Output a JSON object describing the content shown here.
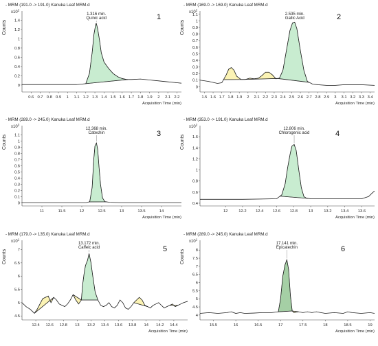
{
  "chart_data": [
    {
      "type": "line",
      "panel_number": "1",
      "title": "- MRM (191.0 -> 191.0) Kanuka Leaf MRM.d",
      "ylabel": "Counts",
      "yscale_label": "x10",
      "yscale_exp": "2",
      "xlabel": "Acquisition Time (min)",
      "xlim": [
        0.5,
        2.25
      ],
      "ylim": [
        -0.15,
        1.6
      ],
      "xticks": [
        0.6,
        0.7,
        0.8,
        0.9,
        1,
        1.1,
        1.2,
        1.3,
        1.4,
        1.5,
        1.6,
        1.7,
        1.8,
        1.9,
        2,
        2.1,
        2.2
      ],
      "yticks": [
        0,
        0.2,
        0.4,
        0.6,
        0.8,
        1,
        1.2,
        1.4
      ],
      "peak_labels": [
        {
          "time": "1.316 min.",
          "name": "Quinic acid"
        }
      ],
      "x": [
        0.5,
        0.8,
        1.1,
        1.2,
        1.24,
        1.27,
        1.29,
        1.31,
        1.316,
        1.33,
        1.35,
        1.37,
        1.4,
        1.45,
        1.5,
        1.55,
        1.6,
        1.65,
        1.7,
        1.8,
        1.9,
        2.0,
        2.1,
        2.2,
        2.25
      ],
      "y": [
        0.01,
        0.01,
        0.01,
        0.03,
        0.25,
        0.7,
        1.1,
        1.32,
        1.33,
        1.22,
        0.98,
        0.7,
        0.5,
        0.36,
        0.25,
        0.18,
        0.14,
        0.12,
        0.12,
        0.13,
        0.11,
        0.09,
        0.07,
        0.05,
        0.04
      ],
      "peaks": [
        {
          "from": 1.2,
          "to": 1.66,
          "color": "#c8ecd0"
        }
      ]
    },
    {
      "type": "line",
      "panel_number": "2",
      "title": "- MRM (169.0 -> 169.0) Kanuka Leaf MRM.d",
      "ylabel": "Counts",
      "yscale_label": "x10",
      "yscale_exp": "2",
      "xlabel": "Acquisition Time (min)",
      "xlim": [
        1.45,
        3.45
      ],
      "ylim": [
        -0.08,
        1.15
      ],
      "xticks": [
        1.5,
        1.6,
        1.7,
        1.8,
        1.9,
        2,
        2.1,
        2.2,
        2.3,
        2.4,
        2.5,
        2.6,
        2.7,
        2.8,
        2.9,
        3,
        3.1,
        3.2,
        3.3,
        3.4
      ],
      "yticks": [
        0,
        0.1,
        0.2,
        0.3,
        0.4,
        0.5,
        0.6,
        0.7,
        0.8,
        0.9,
        1,
        1.1
      ],
      "peak_labels": [
        {
          "time": "2.535 min.",
          "name": "Gallic Acid"
        }
      ],
      "x": [
        1.45,
        1.55,
        1.65,
        1.7,
        1.75,
        1.78,
        1.81,
        1.84,
        1.87,
        1.92,
        1.97,
        2.02,
        2.07,
        2.12,
        2.16,
        2.2,
        2.24,
        2.28,
        2.32,
        2.36,
        2.4,
        2.44,
        2.48,
        2.51,
        2.535,
        2.56,
        2.6,
        2.64,
        2.68,
        2.74,
        2.8,
        2.9,
        3.0,
        3.1,
        3.2,
        3.3,
        3.45
      ],
      "y": [
        0.1,
        0.08,
        0.05,
        0.06,
        0.18,
        0.27,
        0.29,
        0.25,
        0.16,
        0.11,
        0.11,
        0.13,
        0.12,
        0.13,
        0.17,
        0.22,
        0.22,
        0.18,
        0.12,
        0.13,
        0.25,
        0.55,
        0.85,
        0.97,
        0.98,
        0.88,
        0.55,
        0.25,
        0.08,
        0.04,
        0.03,
        0.02,
        0.02,
        0.03,
        0.03,
        0.03,
        0.02
      ],
      "peaks": [
        {
          "from": 1.72,
          "to": 1.95,
          "color": "#fbf3b4"
        },
        {
          "from": 1.95,
          "to": 2.34,
          "color": "#fbf3b4"
        },
        {
          "from": 2.34,
          "to": 2.7,
          "color": "#c8ecd0"
        }
      ]
    },
    {
      "type": "line",
      "panel_number": "3",
      "title": "- MRM (289.0 -> 245.0) Kanuka Leaf MRM.d",
      "ylabel": "Counts",
      "yscale_label": "x10",
      "yscale_exp": "3",
      "xlabel": "Acquisition Time (min)",
      "xlim": [
        10.5,
        14.5
      ],
      "ylim": [
        -0.05,
        1.25
      ],
      "xticks": [
        11,
        11.5,
        12,
        12.5,
        13,
        13.5,
        14
      ],
      "yticks": [
        0,
        0.1,
        0.2,
        0.3,
        0.4,
        0.5,
        0.6,
        0.7,
        0.8,
        0.9,
        1,
        1.1
      ],
      "peak_labels": [
        {
          "time": "12.368 min.",
          "name": "Catechin"
        }
      ],
      "x": [
        10.5,
        11.5,
        12.1,
        12.2,
        12.26,
        12.3,
        12.33,
        12.368,
        12.4,
        12.43,
        12.47,
        12.52,
        12.58,
        12.7,
        13.0,
        14.5
      ],
      "y": [
        0,
        0,
        0,
        0.02,
        0.25,
        0.7,
        0.92,
        0.97,
        0.86,
        0.6,
        0.3,
        0.08,
        0.02,
        0.01,
        0,
        0
      ],
      "peaks": [
        {
          "from": 12.18,
          "to": 12.62,
          "color": "#c8ecd0"
        }
      ]
    },
    {
      "type": "line",
      "panel_number": "4",
      "title": "- MRM (353.0 -> 191.0) Kanuka Leaf MRM.d",
      "ylabel": "Counts",
      "yscale_label": "x10",
      "yscale_exp": "2",
      "xlabel": "Acquisition Time (min)",
      "xlim": [
        11.7,
        13.75
      ],
      "ylim": [
        0.35,
        1.8
      ],
      "xticks": [
        12,
        12.2,
        12.4,
        12.6,
        12.8,
        13,
        13.2,
        13.4,
        13.6
      ],
      "yticks": [
        0.4,
        0.6,
        0.8,
        1,
        1.2,
        1.4,
        1.6
      ],
      "peak_labels": [
        {
          "time": "12.806 min.",
          "name": "Chlorogenic acid"
        }
      ],
      "x": [
        11.7,
        12.2,
        12.6,
        12.66,
        12.7,
        12.73,
        12.76,
        12.78,
        12.806,
        12.83,
        12.86,
        12.89,
        12.92,
        12.95,
        13.0,
        13.1,
        13.3,
        13.6,
        13.68,
        13.72,
        13.75
      ],
      "y": [
        0.47,
        0.47,
        0.48,
        0.55,
        0.75,
        1.05,
        1.3,
        1.43,
        1.46,
        1.35,
        1.0,
        0.68,
        0.52,
        0.49,
        0.48,
        0.48,
        0.48,
        0.48,
        0.52,
        0.58,
        0.62
      ],
      "peaks": [
        {
          "from": 12.64,
          "to": 12.97,
          "color": "#c8ecd0"
        }
      ]
    },
    {
      "type": "line",
      "panel_number": "5",
      "title": "- MRM (179.0 -> 135.0) Kanuka Leaf MRM.d",
      "ylabel": "Counts",
      "yscale_label": "x10",
      "yscale_exp": "1",
      "xlabel": "Acquisition Time (min)",
      "xlim": [
        12.2,
        14.6
      ],
      "ylim": [
        4.35,
        7.35
      ],
      "xticks": [
        12.4,
        12.6,
        12.8,
        13,
        13.2,
        13.4,
        13.6,
        13.8,
        14,
        14.2,
        14.4
      ],
      "yticks": [
        4.5,
        5,
        5.5,
        6,
        6.5,
        7
      ],
      "peak_labels": [
        {
          "time": "13.172 min.",
          "name": "Caffeic acid"
        }
      ],
      "x": [
        12.2,
        12.26,
        12.32,
        12.38,
        12.42,
        12.46,
        12.5,
        12.54,
        12.58,
        12.62,
        12.66,
        12.7,
        12.74,
        12.78,
        12.82,
        12.86,
        12.9,
        12.94,
        12.98,
        13.02,
        13.06,
        13.08,
        13.1,
        13.12,
        13.15,
        13.172,
        13.2,
        13.22,
        13.26,
        13.3,
        13.34,
        13.38,
        13.42,
        13.46,
        13.5,
        13.54,
        13.58,
        13.62,
        13.66,
        13.7,
        13.74,
        13.78,
        13.82,
        13.86,
        13.9,
        13.94,
        13.98,
        14.02,
        14.06,
        14.1,
        14.14,
        14.18,
        14.22,
        14.26,
        14.3,
        14.34,
        14.38,
        14.42,
        14.46,
        14.5,
        14.54,
        14.6
      ],
      "y": [
        5.0,
        4.85,
        4.75,
        4.6,
        4.75,
        4.95,
        5.15,
        5.2,
        5.25,
        5.0,
        5.2,
        5.1,
        4.95,
        4.9,
        4.85,
        4.95,
        5.1,
        5.3,
        5.1,
        4.95,
        5.1,
        5.7,
        6.1,
        6.4,
        6.6,
        6.85,
        6.5,
        6.1,
        5.4,
        5.1,
        4.9,
        4.85,
        4.9,
        5.0,
        4.85,
        4.8,
        4.9,
        5.1,
        5.0,
        4.8,
        4.75,
        4.85,
        5.0,
        5.1,
        5.2,
        5.1,
        4.9,
        4.85,
        4.8,
        4.9,
        4.95,
        5.0,
        4.9,
        4.8,
        4.85,
        4.9,
        4.95,
        4.85,
        4.9,
        4.95,
        5.0,
        5.05
      ],
      "peaks": [
        {
          "from": 12.38,
          "to": 12.66,
          "color": "#fbf3b4"
        },
        {
          "from": 12.94,
          "to": 13.06,
          "color": "#fbf3b4"
        },
        {
          "from": 13.06,
          "to": 13.3,
          "color": "#c8ecd0"
        },
        {
          "from": 13.82,
          "to": 14.02,
          "color": "#fbf3b4"
        },
        {
          "from": 14.34,
          "to": 14.46,
          "color": "#fbf3b4"
        }
      ]
    },
    {
      "type": "line",
      "panel_number": "6",
      "title": "- MRM (289.0 -> 245.0) Kanuka Leaf MRM.d",
      "ylabel": "Counts",
      "yscale_label": "x10",
      "yscale_exp": "1",
      "xlabel": "Acquisition Time (min)",
      "xlim": [
        15.2,
        19.1
      ],
      "ylim": [
        3.7,
        8.6
      ],
      "xticks": [
        15.5,
        16,
        16.5,
        17,
        17.5,
        18,
        18.5,
        19
      ],
      "yticks": [
        4,
        4.5,
        5,
        5.5,
        6,
        6.5,
        7,
        7.5,
        8
      ],
      "peak_labels": [
        {
          "time": "17.141 min.",
          "name": "Epicatechin"
        }
      ],
      "x": [
        15.2,
        15.4,
        15.6,
        15.8,
        15.9,
        16.0,
        16.1,
        16.2,
        16.4,
        16.6,
        16.8,
        16.95,
        17.0,
        17.05,
        17.1,
        17.141,
        17.18,
        17.22,
        17.26,
        17.3,
        17.4,
        17.5,
        17.6,
        17.7,
        17.8,
        17.9,
        18.0,
        18.2,
        18.4,
        18.5,
        18.6,
        18.8,
        19.0,
        19.1
      ],
      "y": [
        4.1,
        4.15,
        4.1,
        4.15,
        4.2,
        4.1,
        4.15,
        4.1,
        4.12,
        4.15,
        4.15,
        4.2,
        5.0,
        6.4,
        7.1,
        7.4,
        6.8,
        5.2,
        4.25,
        4.15,
        4.2,
        4.15,
        4.2,
        4.15,
        4.2,
        4.15,
        4.1,
        4.15,
        4.1,
        4.2,
        4.15,
        4.1,
        4.15,
        4.1
      ],
      "peaks": [
        {
          "from": 16.95,
          "to": 17.26,
          "color": "#a5cfa5"
        },
        {
          "from": 17.26,
          "to": 17.4,
          "color": "#fbf3b4"
        }
      ]
    }
  ]
}
